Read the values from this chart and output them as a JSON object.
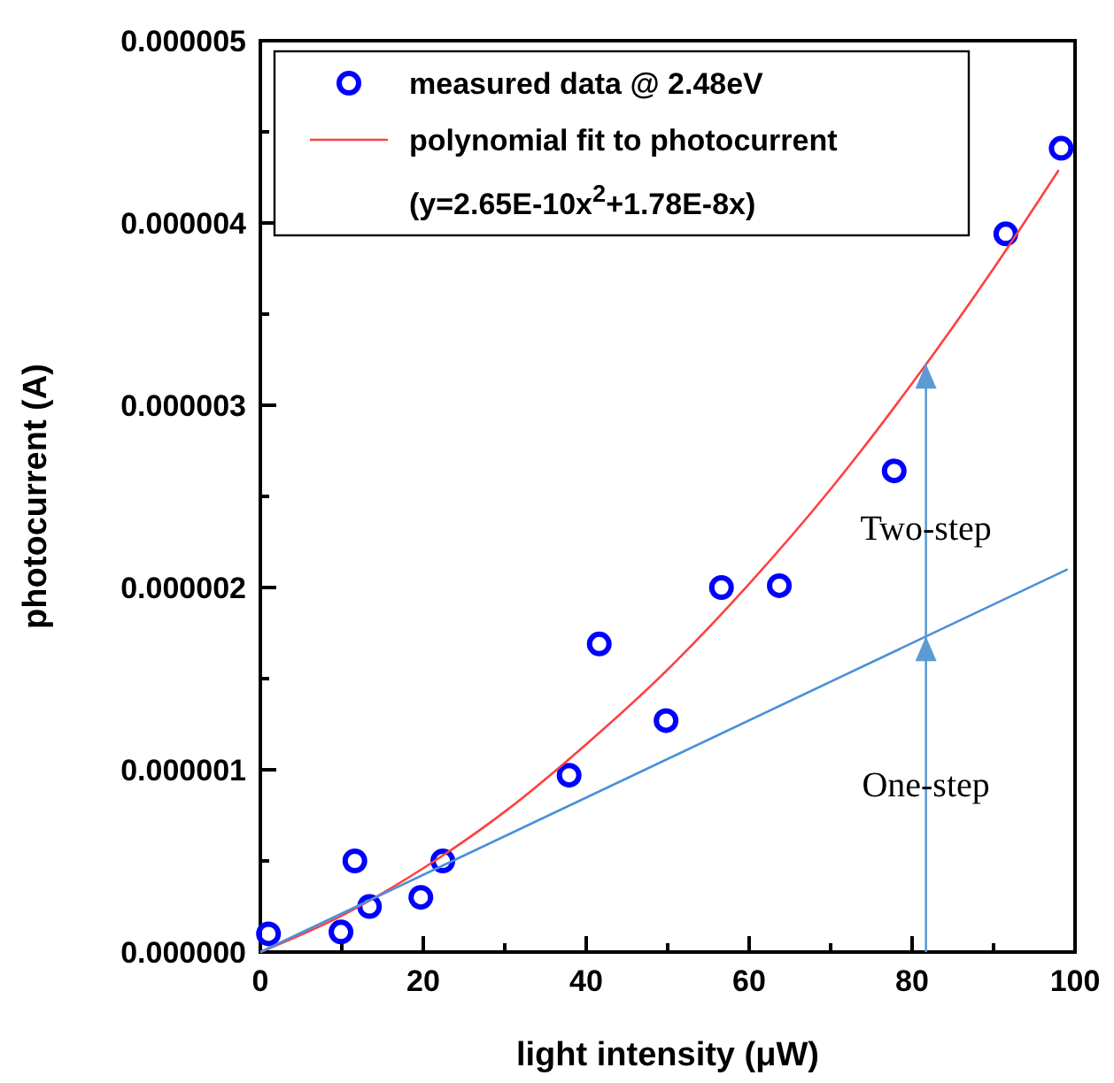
{
  "chart_data": {
    "type": "scatter",
    "xlabel": "light intensity (μW)",
    "ylabel": "photocurrent (A)",
    "xlim": [
      0,
      100
    ],
    "ylim": [
      0,
      5e-06
    ],
    "xticks": [
      0,
      20,
      40,
      60,
      80,
      100
    ],
    "yticks": [
      {
        "value": 0,
        "label": "0.000000"
      },
      {
        "value": 1e-06,
        "label": "0.000001"
      },
      {
        "value": 2e-06,
        "label": "0.000002"
      },
      {
        "value": 3e-06,
        "label": "0.000003"
      },
      {
        "value": 4e-06,
        "label": "0.000004"
      },
      {
        "value": 5e-06,
        "label": "0.000005"
      }
    ],
    "grid": false,
    "legend": "top left",
    "series": [
      {
        "name": "measured data @ 2.48eV",
        "marker": "circle",
        "color": "#0000ff",
        "x": [
          1.0,
          9.9,
          11.6,
          13.4,
          19.7,
          22.4,
          37.9,
          41.6,
          49.8,
          56.6,
          63.7,
          77.8,
          91.5,
          98.3
        ],
        "values": [
          1e-07,
          1.1e-07,
          5e-07,
          2.5e-07,
          3e-07,
          5e-07,
          9.7e-07,
          1.69e-06,
          1.27e-06,
          2e-06,
          2.01e-06,
          2.64e-06,
          3.94e-06,
          4.41e-06
        ]
      },
      {
        "name": "polynomial fit to photocurrent",
        "type": "line",
        "marker": "none",
        "color": "#ff4040",
        "x": [
          0,
          10,
          20,
          30,
          40,
          50,
          60,
          70,
          80,
          90,
          98
        ],
        "values": [
          0,
          2e-07,
          4.6e-07,
          7.7e-07,
          1.14e-06,
          1.55e-06,
          2.02e-06,
          2.54e-06,
          3.12e-06,
          3.75e-06,
          4.29e-06
        ]
      },
      {
        "type": "line",
        "marker": "none",
        "color": "#4a90d9",
        "x": [
          0,
          99.1
        ],
        "values": [
          0,
          2.1e-06
        ]
      }
    ],
    "annotations": [
      "(y=2.65E-10x$^{2}$+1.78E-8x)",
      "Two-step",
      "One-step"
    ]
  }
}
